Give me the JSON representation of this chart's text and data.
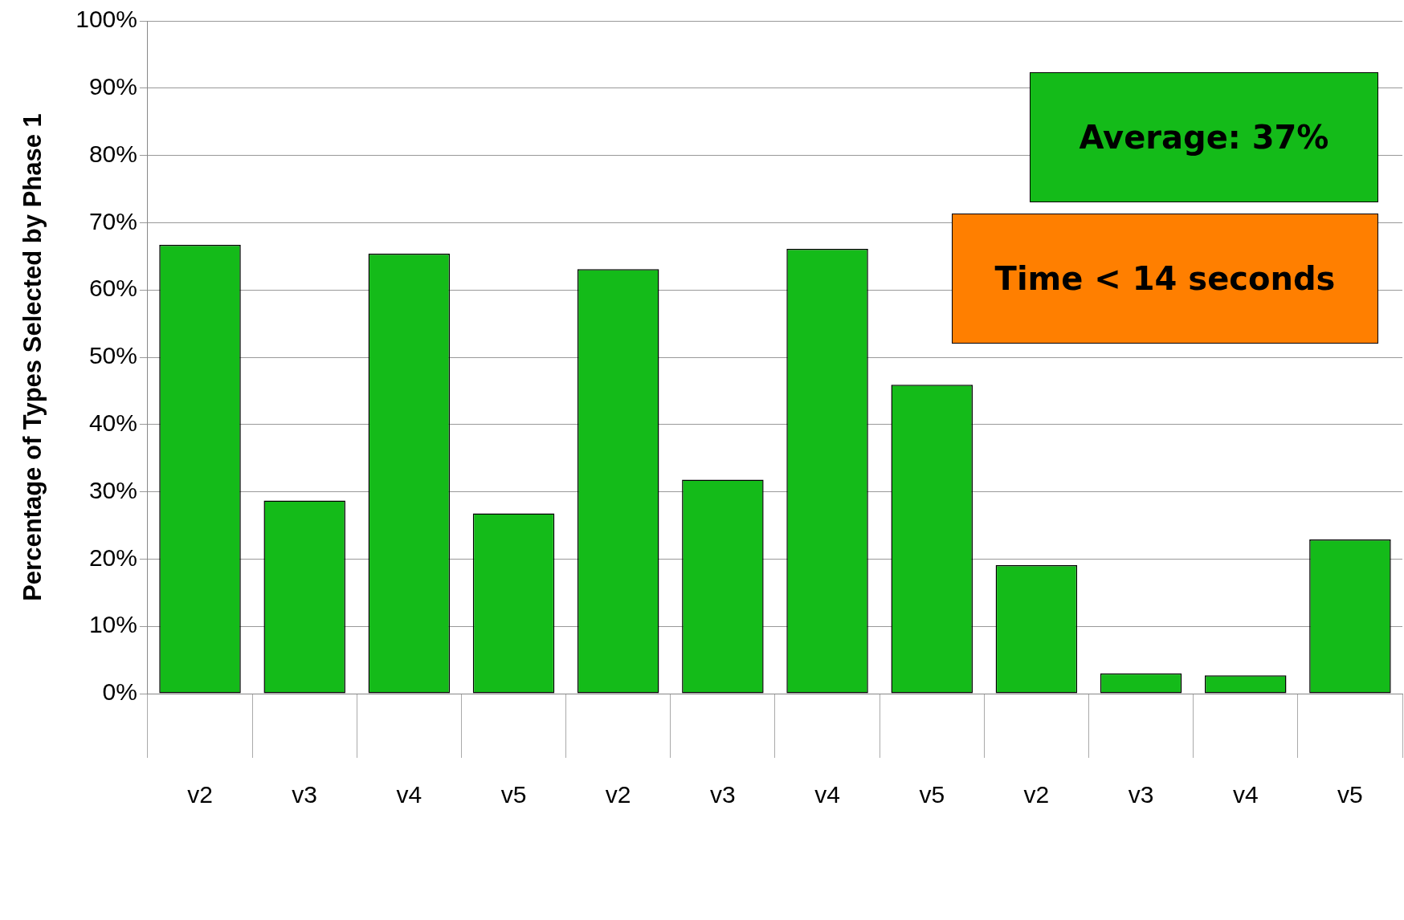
{
  "chart_data": {
    "type": "bar",
    "ylabel": "Percentage of Types Selected by Phase 1",
    "categories": [
      "v2",
      "v3",
      "v4",
      "v5",
      "v2",
      "v3",
      "v4",
      "v5",
      "v2",
      "v3",
      "v4",
      "v5"
    ],
    "values": [
      66.7,
      28.7,
      65.4,
      26.8,
      63.1,
      31.8,
      66.1,
      45.9,
      19.1,
      3.0,
      2.7,
      22.9
    ],
    "color": "#14bb19",
    "ylim": [
      0,
      100
    ],
    "yticks": [
      {
        "value": 0,
        "label": "0%"
      },
      {
        "value": 10,
        "label": "10%"
      },
      {
        "value": 20,
        "label": "20%"
      },
      {
        "value": 30,
        "label": "30%"
      },
      {
        "value": 40,
        "label": "40%"
      },
      {
        "value": 50,
        "label": "50%"
      },
      {
        "value": 60,
        "label": "60%"
      },
      {
        "value": 70,
        "label": "70%"
      },
      {
        "value": 80,
        "label": "80%"
      },
      {
        "value": 90,
        "label": "90%"
      },
      {
        "value": 100,
        "label": "100%"
      }
    ],
    "grid": "y",
    "annotations": [
      "Average: 37%",
      "Time < 14 seconds"
    ]
  }
}
